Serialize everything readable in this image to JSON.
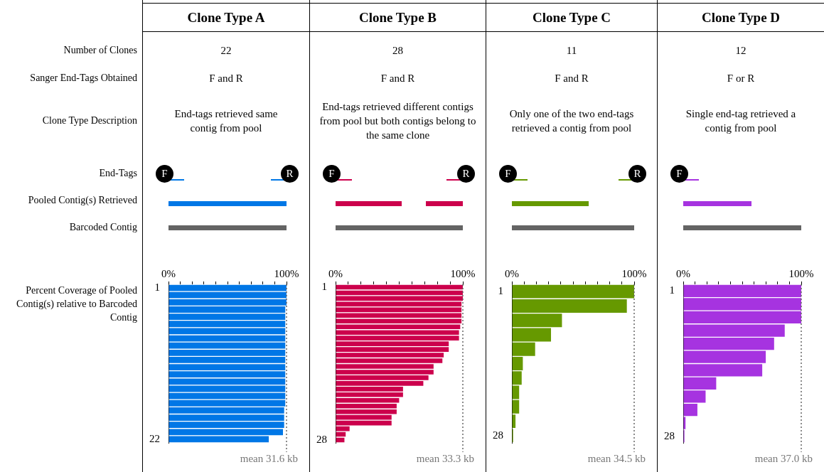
{
  "chart_data": [
    {
      "type": "other",
      "annotations": [
        "Number of Clones",
        "Sanger End-Tags Obtained",
        "Clone Type Description",
        "End-Tags",
        "Pooled Contig(s) Retrieved",
        "Barcoded Contig",
        "Percent Coverage of Pooled Contig(s) relative to Barcoded Contig"
      ]
    },
    {
      "type": "bar",
      "orientation": "horizontal",
      "title": "Clone Type A",
      "annotations": [
        "22",
        "F and R",
        "End-tags retrieved same contig from pool",
        "mean 31.6 kb",
        "F",
        "R"
      ],
      "categories": [
        "1",
        null,
        null,
        null,
        null,
        null,
        null,
        null,
        null,
        null,
        null,
        null,
        null,
        null,
        null,
        null,
        null,
        null,
        null,
        null,
        null,
        "22"
      ],
      "values": [
        100,
        100,
        100,
        99,
        99,
        99,
        99,
        99,
        99,
        99,
        99,
        99,
        99,
        99,
        99,
        99,
        99,
        98,
        98,
        98,
        97,
        85
      ],
      "color": "#0077e6",
      "xlim": [
        0,
        100
      ],
      "xticks": [
        {
          "value": 0,
          "label": "0%"
        },
        {
          "value": 10,
          "label": null
        },
        {
          "value": 20,
          "label": null
        },
        {
          "value": 30,
          "label": null
        },
        {
          "value": 40,
          "label": null
        },
        {
          "value": 50,
          "label": null
        },
        {
          "value": 60,
          "label": null
        },
        {
          "value": 70,
          "label": null
        },
        {
          "value": 80,
          "label": null
        },
        {
          "value": 90,
          "label": null
        },
        {
          "value": 100,
          "label": "100%"
        }
      ],
      "ref_lines": [
        {
          "axis": "x",
          "value": 100,
          "line_style": "dotted"
        }
      ]
    },
    {
      "type": "bar",
      "orientation": "horizontal",
      "title": "Clone Type B",
      "annotations": [
        "28",
        "F and R",
        "End-tags retrieved different contigs from pool but both contigs belong to the same clone",
        "mean 33.3 kb",
        "F",
        "R"
      ],
      "categories": [
        "1",
        null,
        null,
        null,
        null,
        null,
        null,
        null,
        null,
        null,
        null,
        null,
        null,
        null,
        null,
        null,
        null,
        null,
        null,
        null,
        null,
        null,
        null,
        null,
        null,
        null,
        null,
        "28"
      ],
      "values": [
        100,
        100,
        100,
        99,
        99,
        99,
        99,
        98,
        97,
        97,
        89,
        89,
        85,
        84,
        77,
        77,
        73,
        69,
        53,
        53,
        50,
        48,
        48,
        44,
        44,
        11,
        8,
        7
      ],
      "color": "#cc004c",
      "xlim": [
        0,
        100
      ],
      "xticks": [
        {
          "value": 0,
          "label": "0%"
        },
        {
          "value": 10,
          "label": null
        },
        {
          "value": 20,
          "label": null
        },
        {
          "value": 30,
          "label": null
        },
        {
          "value": 40,
          "label": null
        },
        {
          "value": 50,
          "label": null
        },
        {
          "value": 60,
          "label": null
        },
        {
          "value": 70,
          "label": null
        },
        {
          "value": 80,
          "label": null
        },
        {
          "value": 90,
          "label": null
        },
        {
          "value": 100,
          "label": "100%"
        }
      ],
      "ref_lines": [
        {
          "axis": "x",
          "value": 100,
          "line_style": "dotted"
        }
      ]
    },
    {
      "type": "bar",
      "orientation": "horizontal",
      "title": "Clone Type C",
      "annotations": [
        "11",
        "F and R",
        "Only one of the two end-tags retrieved a contig from pool",
        "mean 34.5 kb",
        "F",
        "R"
      ],
      "categories": [
        "1",
        null,
        null,
        null,
        null,
        null,
        null,
        null,
        null,
        null,
        "28"
      ],
      "values": [
        100,
        94,
        41,
        32,
        19,
        9,
        8,
        6,
        6,
        3,
        1
      ],
      "color": "#669900",
      "xlim": [
        0,
        100
      ],
      "xticks": [
        {
          "value": 0,
          "label": "0%"
        },
        {
          "value": 10,
          "label": null
        },
        {
          "value": 20,
          "label": null
        },
        {
          "value": 30,
          "label": null
        },
        {
          "value": 40,
          "label": null
        },
        {
          "value": 50,
          "label": null
        },
        {
          "value": 60,
          "label": null
        },
        {
          "value": 70,
          "label": null
        },
        {
          "value": 80,
          "label": null
        },
        {
          "value": 90,
          "label": null
        },
        {
          "value": 100,
          "label": "100%"
        }
      ],
      "ref_lines": [
        {
          "axis": "x",
          "value": 100,
          "line_style": "dotted"
        }
      ]
    },
    {
      "type": "bar",
      "orientation": "horizontal",
      "title": "Clone Type D",
      "annotations": [
        "12",
        "F or R",
        "Single end-tag retrieved a contig from pool",
        "mean 37.0 kb",
        "F"
      ],
      "categories": [
        "1",
        null,
        null,
        null,
        null,
        null,
        null,
        null,
        null,
        null,
        null,
        "28"
      ],
      "values": [
        100,
        100,
        100,
        86,
        77,
        70,
        67,
        28,
        19,
        12,
        2,
        1
      ],
      "color": "#a633e0",
      "xlim": [
        0,
        100
      ],
      "xticks": [
        {
          "value": 0,
          "label": "0%"
        },
        {
          "value": 10,
          "label": null
        },
        {
          "value": 20,
          "label": null
        },
        {
          "value": 30,
          "label": null
        },
        {
          "value": 40,
          "label": null
        },
        {
          "value": 50,
          "label": null
        },
        {
          "value": 60,
          "label": null
        },
        {
          "value": 70,
          "label": null
        },
        {
          "value": 80,
          "label": null
        },
        {
          "value": 90,
          "label": null
        },
        {
          "value": 100,
          "label": "100%"
        }
      ],
      "ref_lines": [
        {
          "axis": "x",
          "value": 100,
          "line_style": "dotted"
        }
      ]
    }
  ]
}
